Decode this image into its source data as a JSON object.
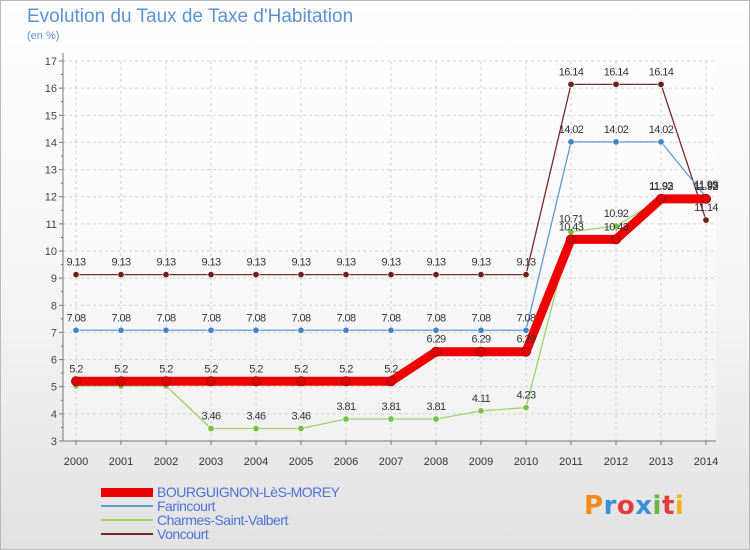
{
  "title": "Evolution du Taux de Taxe d'Habitation",
  "unit_label": "(en %)",
  "logo_text": "Proxiti",
  "logo_colors": [
    "#f28a1a",
    "#3b8fd8",
    "#e23b3b",
    "#3b8fd8",
    "#6db33f",
    "#e23b3b",
    "#f2b01a"
  ],
  "chart_data": {
    "type": "line",
    "x": [
      "2000",
      "2001",
      "2002",
      "2003",
      "2004",
      "2005",
      "2006",
      "2007",
      "2008",
      "2009",
      "2010",
      "2011",
      "2012",
      "2013",
      "2014"
    ],
    "ylim": [
      3,
      17
    ],
    "yticks": [
      3,
      4,
      5,
      6,
      7,
      8,
      9,
      10,
      11,
      12,
      13,
      14,
      15,
      16,
      17
    ],
    "grid": true,
    "legend_position": "bottom-left",
    "series": [
      {
        "name": "Voncourt",
        "color": "#7b2a2a",
        "dot": "#6d1f1f",
        "width": 1.3,
        "values": [
          9.13,
          9.13,
          9.13,
          9.13,
          9.13,
          9.13,
          9.13,
          9.13,
          9.13,
          9.13,
          9.13,
          16.14,
          16.14,
          16.14,
          11.14
        ],
        "labels": [
          "9.13",
          "9.13",
          "9.13",
          "9.13",
          "9.13",
          "9.13",
          "9.13",
          "9.13",
          "9.13",
          "9.13",
          "9.13",
          "16.14",
          "16.14",
          "16.14",
          "11.14"
        ]
      },
      {
        "name": "Farincourt",
        "color": "#5b9bd5",
        "dot": "#3f86c8",
        "width": 1.3,
        "values": [
          7.08,
          7.08,
          7.08,
          7.08,
          7.08,
          7.08,
          7.08,
          7.08,
          7.08,
          7.08,
          7.08,
          14.02,
          14.02,
          14.02,
          11.99
        ],
        "labels": [
          "7.08",
          "7.08",
          "7.08",
          "7.08",
          "7.08",
          "7.08",
          "7.08",
          "7.08",
          "7.08",
          "7.08",
          "7.08",
          "14.02",
          "14.02",
          "14.02",
          "11.99"
        ]
      },
      {
        "name": "Charmes-Saint-Valbert",
        "color": "#9bd36b",
        "dot": "#76c043",
        "width": 1.3,
        "values": [
          5.03,
          5.03,
          5.03,
          3.46,
          3.46,
          3.46,
          3.81,
          3.81,
          3.81,
          4.11,
          4.23,
          10.71,
          10.92,
          11.93,
          11.93
        ],
        "labels": [
          "",
          "",
          "",
          "3.46",
          "3.46",
          "3.46",
          "3.81",
          "3.81",
          "3.81",
          "4.11",
          "4.23",
          "10.71",
          "10.92",
          "11.93",
          "11.93"
        ]
      },
      {
        "name": "BOURGUIGNON-LèS-MOREY",
        "color": "#ee0000",
        "dot": "#dd0000",
        "width": 9,
        "values": [
          5.2,
          5.2,
          5.2,
          5.2,
          5.2,
          5.2,
          5.2,
          5.2,
          6.29,
          6.29,
          6.29,
          10.43,
          10.43,
          11.92,
          11.92
        ],
        "labels": [
          "5.2",
          "5.2",
          "5.2",
          "5.2",
          "5.2",
          "5.2",
          "5.2",
          "5.2",
          "6.29",
          "6.29",
          "6.29",
          "10.43",
          "10.43",
          "11.92",
          "11.92"
        ]
      }
    ],
    "legend_order": [
      "BOURGUIGNON-LèS-MOREY",
      "Farincourt",
      "Charmes-Saint-Valbert",
      "Voncourt"
    ]
  }
}
